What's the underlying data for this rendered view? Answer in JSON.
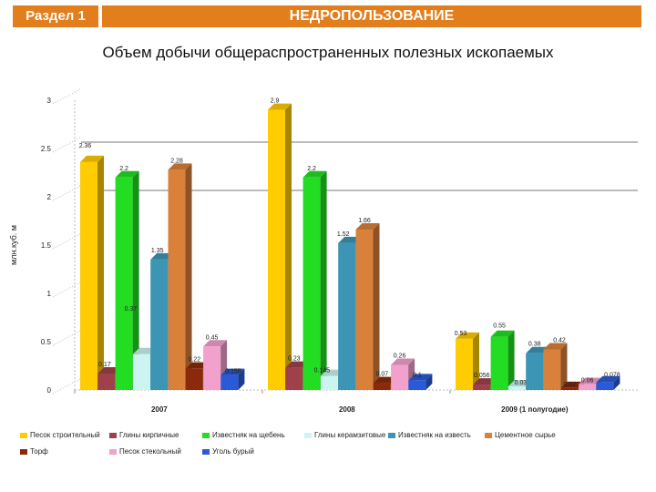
{
  "header": {
    "section_label": "Раздел 1",
    "section_title": "НЕДРОПОЛЬЗОВАНИЕ"
  },
  "chart_data": {
    "type": "bar",
    "title": "Объем добычи общераспространенных полезных ископаемых",
    "ylabel": "млн.куб. м",
    "xlabel": "",
    "ylim": [
      0,
      3
    ],
    "yticks": [
      0,
      0.5,
      1,
      1.5,
      2,
      2.5,
      3
    ],
    "grid": "major-y-partial",
    "legend_position": "bottom",
    "categories": [
      "2007",
      "2008",
      "2009 (1 полугодие)"
    ],
    "series": [
      {
        "name": "Песок строительный",
        "color": "#ffcc00",
        "values": [
          2.36,
          2.9,
          0.53
        ],
        "labels": [
          "2.36",
          "2.9",
          "0.53"
        ]
      },
      {
        "name": "Глины кирпичные",
        "color": "#a0404a",
        "values": [
          0.17,
          0.23,
          0.056
        ],
        "labels": [
          "0.17",
          "0.23",
          "0.056"
        ]
      },
      {
        "name": "Известняк на щебень",
        "color": "#22dd22",
        "values": [
          2.2,
          2.2,
          0.55
        ],
        "labels": [
          "2.2",
          "2.2",
          "0.55"
        ]
      },
      {
        "name": "Глины керамзитовые",
        "color": "#ccf4f0",
        "values": [
          0.37,
          0.145,
          0.038
        ],
        "labels": [
          "0.37",
          "0.145",
          "0.038"
        ]
      },
      {
        "name": "Известняк на известь",
        "color": "#3c95b5",
        "values": [
          1.35,
          1.52,
          0.38
        ],
        "labels": [
          "1.35",
          "1.52",
          "0.38"
        ]
      },
      {
        "name": "Цементное сырье",
        "color": "#d9803a",
        "values": [
          2.28,
          1.66,
          0.42
        ],
        "labels": [
          "2.28",
          "1.66",
          "0.42"
        ]
      },
      {
        "name": "Торф",
        "color": "#8a2a0a",
        "values": [
          0.22,
          0.07,
          0.02
        ],
        "labels": [
          "0.22",
          "0.07",
          "0.02"
        ]
      },
      {
        "name": "Песок стекольный",
        "color": "#f2a0cc",
        "values": [
          0.45,
          0.26,
          0.06
        ],
        "labels": [
          "0.45",
          "0.26",
          "0.06"
        ]
      },
      {
        "name": "Уголь бурый",
        "color": "#2a5ad8",
        "values": [
          0.155,
          0.1,
          0.078
        ],
        "labels": [
          "0.155",
          "0.1",
          "0.078"
        ]
      }
    ],
    "label_pos": [
      [
        [
          -4,
          -16
        ],
        [
          -2,
          -8
        ],
        [
          0,
          -8
        ],
        [
          -12,
          -48
        ],
        [
          -2,
          -8
        ],
        [
          0,
          -8
        ],
        [
          0,
          -8
        ],
        [
          0,
          -8
        ],
        [
          4,
          -2
        ]
      ],
      [
        [
          -2,
          -8
        ],
        [
          0,
          -8
        ],
        [
          0,
          -8
        ],
        [
          -8,
          -4
        ],
        [
          -4,
          -8
        ],
        [
          0,
          -8
        ],
        [
          0,
          -8
        ],
        [
          0,
          -8
        ],
        [
          0,
          -4
        ]
      ],
      [
        [
          -4,
          -4
        ],
        [
          0,
          -8
        ],
        [
          0,
          -10
        ],
        [
          6,
          -2
        ],
        [
          0,
          -8
        ],
        [
          8,
          -8
        ],
        [
          0,
          -2
        ],
        [
          0,
          -2
        ],
        [
          8,
          -6
        ]
      ]
    ]
  }
}
